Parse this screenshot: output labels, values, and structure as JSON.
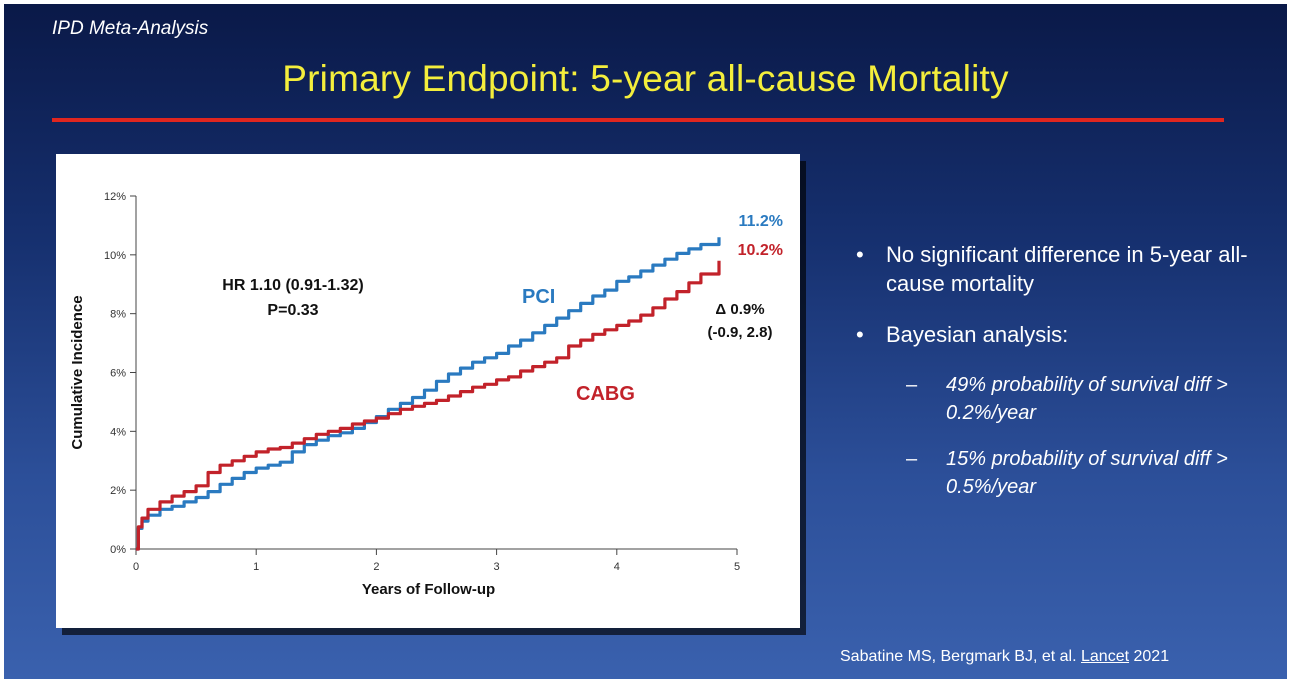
{
  "slide": {
    "kicker": "IPD Meta-Analysis",
    "title": "Primary Endpoint: 5-year all-cause Mortality",
    "rule_color": "#e0261f",
    "title_color": "#f4ee3c"
  },
  "bullets": [
    "No significant difference in 5-year all-cause mortality",
    "Bayesian analysis:"
  ],
  "sub_bullets": [
    "49% probability of survival diff > 0.2%/year",
    "15% probability of survival diff > 0.5%/year"
  ],
  "citation": {
    "authors": "Sabatine MS, Bergmark BJ, et al.",
    "journal": "Lancet",
    "year": "2021"
  },
  "chart_data": {
    "type": "line",
    "title": "",
    "xlabel": "Years of Follow-up",
    "ylabel": "Cumulative Incidence",
    "xlim": [
      0,
      5
    ],
    "ylim": [
      0,
      12
    ],
    "x_ticks": [
      "0",
      "1",
      "2",
      "3",
      "4",
      "5"
    ],
    "y_ticks": [
      "0%",
      "2%",
      "4%",
      "6%",
      "8%",
      "10%",
      "12%"
    ],
    "grid": false,
    "series": [
      {
        "name": "PCI",
        "color": "#2a7ac0",
        "end_label": "11.2%",
        "x": [
          0,
          0.02,
          0.05,
          0.1,
          0.2,
          0.3,
          0.4,
          0.5,
          0.6,
          0.7,
          0.8,
          0.9,
          1.0,
          1.1,
          1.2,
          1.3,
          1.4,
          1.5,
          1.6,
          1.7,
          1.8,
          1.9,
          2.0,
          2.1,
          2.2,
          2.3,
          2.4,
          2.5,
          2.6,
          2.7,
          2.8,
          2.9,
          3.0,
          3.1,
          3.2,
          3.3,
          3.4,
          3.5,
          3.6,
          3.7,
          3.8,
          3.9,
          4.0,
          4.1,
          4.2,
          4.3,
          4.4,
          4.5,
          4.6,
          4.7,
          4.85
        ],
        "y": [
          0,
          0.7,
          0.95,
          1.15,
          1.35,
          1.45,
          1.6,
          1.75,
          1.95,
          2.2,
          2.4,
          2.6,
          2.75,
          2.85,
          2.95,
          3.3,
          3.55,
          3.7,
          3.85,
          3.95,
          4.1,
          4.3,
          4.5,
          4.75,
          4.95,
          5.15,
          5.4,
          5.7,
          5.95,
          6.15,
          6.35,
          6.5,
          6.65,
          6.9,
          7.1,
          7.35,
          7.6,
          7.85,
          8.1,
          8.35,
          8.6,
          8.8,
          9.1,
          9.25,
          9.45,
          9.65,
          9.85,
          10.05,
          10.2,
          10.35,
          10.6
        ]
      },
      {
        "name": "CABG",
        "color": "#c2222a",
        "end_label": "10.2%",
        "x": [
          0,
          0.02,
          0.05,
          0.1,
          0.2,
          0.3,
          0.4,
          0.5,
          0.6,
          0.7,
          0.8,
          0.9,
          1.0,
          1.1,
          1.2,
          1.3,
          1.4,
          1.5,
          1.6,
          1.7,
          1.8,
          1.9,
          2.0,
          2.1,
          2.2,
          2.3,
          2.4,
          2.5,
          2.6,
          2.7,
          2.8,
          2.9,
          3.0,
          3.1,
          3.2,
          3.3,
          3.4,
          3.5,
          3.6,
          3.7,
          3.8,
          3.9,
          4.0,
          4.1,
          4.2,
          4.3,
          4.4,
          4.5,
          4.6,
          4.7,
          4.85
        ],
        "y": [
          0,
          0.75,
          1.05,
          1.35,
          1.6,
          1.8,
          1.95,
          2.15,
          2.6,
          2.85,
          3.0,
          3.15,
          3.3,
          3.4,
          3.45,
          3.6,
          3.75,
          3.9,
          4.0,
          4.1,
          4.25,
          4.35,
          4.45,
          4.6,
          4.75,
          4.85,
          4.95,
          5.05,
          5.2,
          5.35,
          5.5,
          5.6,
          5.75,
          5.85,
          6.05,
          6.2,
          6.35,
          6.5,
          6.9,
          7.1,
          7.3,
          7.45,
          7.6,
          7.75,
          7.95,
          8.2,
          8.5,
          8.75,
          9.05,
          9.35,
          9.8
        ]
      }
    ],
    "annotations": {
      "hr": "HR 1.10 (0.91-1.32)",
      "p": "P=0.33",
      "delta": "Δ 0.9%",
      "delta_ci": "(-0.9, 2.8)"
    }
  }
}
